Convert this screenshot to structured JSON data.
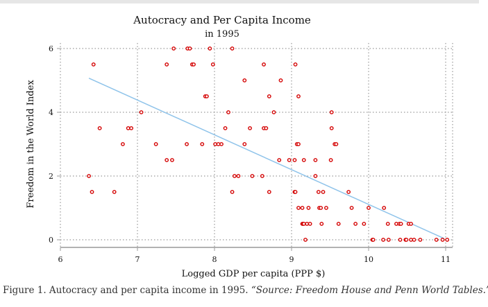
{
  "chart_data": {
    "type": "scatter",
    "title": "Autocracy and Per Capita Income",
    "subtitle": "in 1995",
    "xlabel": "Logged GDP per capita (PPP $)",
    "ylabel": "Freedom in the World Index",
    "xlim": [
      6,
      11.1
    ],
    "ylim": [
      0,
      6
    ],
    "xticks": [
      "6",
      "7",
      "8",
      "9",
      "10",
      "11"
    ],
    "yticks": [
      "0",
      "2",
      "4",
      "6"
    ],
    "grid": true,
    "point_color": "#d40000",
    "fit_color": "#8ec3ea",
    "fit_line": [
      [
        6.37,
        5.07
      ],
      [
        10.98,
        0.04
      ]
    ],
    "points": [
      [
        7.47,
        6
      ],
      [
        7.65,
        6
      ],
      [
        7.68,
        6
      ],
      [
        7.94,
        6
      ],
      [
        8.23,
        6
      ],
      [
        6.43,
        5.5
      ],
      [
        7.38,
        5.5
      ],
      [
        7.71,
        5.5
      ],
      [
        7.73,
        5.5
      ],
      [
        7.98,
        5.5
      ],
      [
        8.64,
        5.5
      ],
      [
        9.05,
        5.5
      ],
      [
        8.39,
        5
      ],
      [
        8.86,
        5
      ],
      [
        7.88,
        4.5
      ],
      [
        7.9,
        4.5
      ],
      [
        8.71,
        4.5
      ],
      [
        9.09,
        4.5
      ],
      [
        7.05,
        4
      ],
      [
        8.18,
        4
      ],
      [
        8.77,
        4
      ],
      [
        9.52,
        4
      ],
      [
        6.51,
        3.5
      ],
      [
        6.88,
        3.5
      ],
      [
        6.92,
        3.5
      ],
      [
        8.14,
        3.5
      ],
      [
        8.46,
        3.5
      ],
      [
        8.64,
        3.5
      ],
      [
        8.67,
        3.5
      ],
      [
        9.52,
        3.5
      ],
      [
        6.81,
        3
      ],
      [
        7.24,
        3
      ],
      [
        7.64,
        3
      ],
      [
        7.84,
        3
      ],
      [
        8.01,
        3
      ],
      [
        8.05,
        3
      ],
      [
        8.09,
        3
      ],
      [
        8.39,
        3
      ],
      [
        9.07,
        3
      ],
      [
        9.09,
        3
      ],
      [
        9.56,
        3
      ],
      [
        9.58,
        3
      ],
      [
        7.38,
        2.5
      ],
      [
        7.45,
        2.5
      ],
      [
        8.84,
        2.5
      ],
      [
        8.97,
        2.5
      ],
      [
        9.04,
        2.5
      ],
      [
        9.16,
        2.5
      ],
      [
        9.31,
        2.5
      ],
      [
        9.51,
        2.5
      ],
      [
        6.37,
        2
      ],
      [
        8.26,
        2
      ],
      [
        8.31,
        2
      ],
      [
        8.49,
        2
      ],
      [
        8.62,
        2
      ],
      [
        9.31,
        2
      ],
      [
        6.41,
        1.5
      ],
      [
        6.7,
        1.5
      ],
      [
        8.23,
        1.5
      ],
      [
        8.71,
        1.5
      ],
      [
        9.04,
        1.5
      ],
      [
        9.05,
        1.5
      ],
      [
        9.35,
        1.5
      ],
      [
        9.41,
        1.5
      ],
      [
        9.74,
        1.5
      ],
      [
        9.09,
        1
      ],
      [
        9.14,
        1
      ],
      [
        9.22,
        1
      ],
      [
        9.36,
        1
      ],
      [
        9.38,
        1
      ],
      [
        9.45,
        1
      ],
      [
        9.78,
        1
      ],
      [
        10.0,
        1
      ],
      [
        10.2,
        1
      ],
      [
        9.14,
        0.5
      ],
      [
        9.15,
        0.5
      ],
      [
        9.16,
        0.5
      ],
      [
        9.2,
        0.5
      ],
      [
        9.24,
        0.5
      ],
      [
        9.39,
        0.5
      ],
      [
        9.61,
        0.5
      ],
      [
        9.83,
        0.5
      ],
      [
        9.94,
        0.5
      ],
      [
        10.25,
        0.5
      ],
      [
        10.36,
        0.5
      ],
      [
        10.4,
        0.5
      ],
      [
        10.42,
        0.5
      ],
      [
        10.52,
        0.5
      ],
      [
        10.55,
        0.5
      ],
      [
        9.18,
        0
      ],
      [
        10.05,
        0
      ],
      [
        10.06,
        0
      ],
      [
        10.19,
        0
      ],
      [
        10.26,
        0
      ],
      [
        10.41,
        0
      ],
      [
        10.48,
        0
      ],
      [
        10.49,
        0
      ],
      [
        10.55,
        0
      ],
      [
        10.59,
        0
      ],
      [
        10.67,
        0
      ],
      [
        10.88,
        0
      ],
      [
        10.96,
        0
      ],
      [
        11.02,
        0
      ]
    ]
  },
  "caption": {
    "prefix": "Figure 1. Autocracy and per capita income in 1995. ",
    "source": "“Source: Freedom House and Penn World Tables.”"
  }
}
